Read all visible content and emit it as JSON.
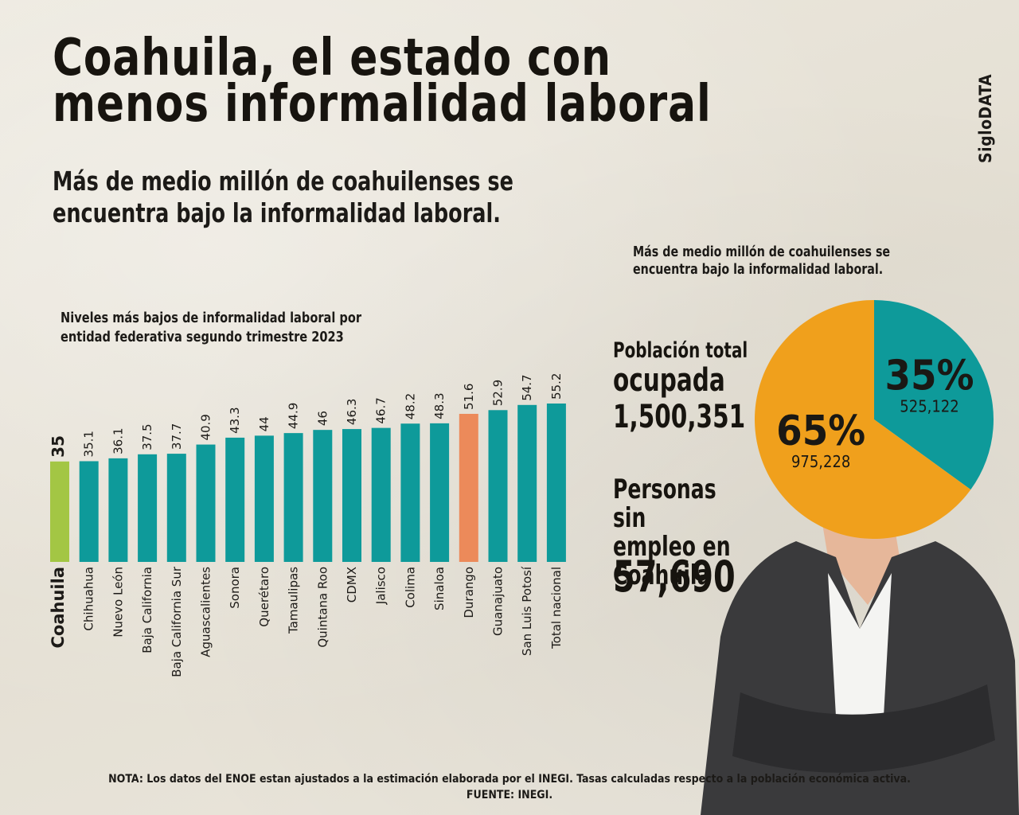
{
  "header": {
    "title_line1": "Coahuila, el estado con",
    "title_line2": "menos informalidad laboral",
    "subtitle_line1": "Más de medio millón de coahuilenses se",
    "subtitle_line2": "encuentra bajo la informalidad laboral.",
    "brand": "SigloDATA"
  },
  "pie_caption_line1": "Más de medio millón de coahuilenses se",
  "pie_caption_line2": "encuentra bajo la informalidad laboral.",
  "stats": {
    "poblacion_label_line1": "Población total",
    "poblacion_label_line2": "ocupada",
    "poblacion_value": "1,500,351",
    "sin_empleo_label_line1": "Personas sin",
    "sin_empleo_label_line2": "empleo en",
    "sin_empleo_label_line3": "Coahuila",
    "sin_empleo_value": "57,690"
  },
  "footer": {
    "note": "NOTA: Los datos del ENOE estan ajustados a la estimación elaborada por el INEGI. Tasas calculadas respecto a la población económica activa.",
    "source": "FUENTE: INEGI."
  },
  "colors": {
    "teal": "#0e9a9a",
    "green": "#a3c644",
    "salmon": "#ec8a5a",
    "orange": "#f0a01c",
    "text": "#1c1a17"
  },
  "chart_data": [
    {
      "type": "bar",
      "title_line1": "Niveles más bajos de informalidad laboral por",
      "title_line2": "entidad federativa segundo trimestre 2023",
      "categories": [
        "Coahuila",
        "Chihuahua",
        "Nuevo León",
        "Baja California",
        "Baja California Sur",
        "Aguascalientes",
        "Sonora",
        "Querétaro",
        "Tamaulipas",
        "Quintana Roo",
        "CDMX",
        "Jalisco",
        "Colima",
        "Sinaloa",
        "Durango",
        "Guanajuato",
        "San Luis Potosí",
        "Total nacional"
      ],
      "values": [
        35,
        35.1,
        36.1,
        37.5,
        37.7,
        40.9,
        43.3,
        44,
        44.9,
        46,
        46.3,
        46.7,
        48.2,
        48.3,
        51.6,
        52.9,
        54.7,
        55.2
      ],
      "value_labels": [
        "35",
        "35.1",
        "36.1",
        "37.5",
        "37.7",
        "40.9",
        "43.3",
        "44",
        "44.9",
        "46",
        "46.3",
        "46.7",
        "48.2",
        "48.3",
        "51.6",
        "52.9",
        "54.7",
        "55.2"
      ],
      "highlight": {
        "Coahuila": "green",
        "Durango": "salmon"
      },
      "ylim": [
        0,
        55.2
      ],
      "grid": false
    },
    {
      "type": "pie",
      "slices": [
        {
          "label": "35%",
          "value": 525122,
          "value_label": "525,122",
          "color": "teal"
        },
        {
          "label": "65%",
          "value": 975228,
          "value_label": "975,228",
          "color": "orange"
        }
      ]
    }
  ]
}
